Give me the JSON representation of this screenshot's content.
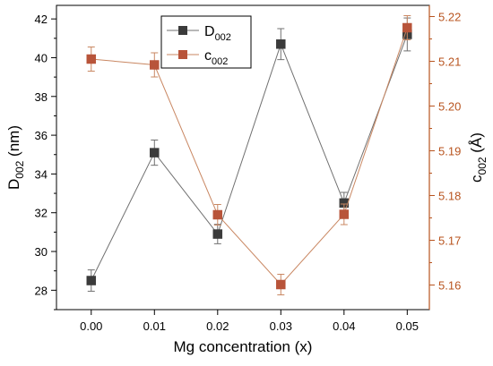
{
  "chart_data": {
    "type": "line",
    "xlabel": "Mg concentration (x)",
    "x": [
      0.0,
      0.01,
      0.02,
      0.03,
      0.04,
      0.05
    ],
    "x_tick_labels": [
      "0.00",
      "0.01",
      "0.02",
      "0.03",
      "0.04",
      "0.05"
    ],
    "xlim": [
      -0.0055,
      0.0535
    ],
    "y_left": {
      "label_base": "D",
      "label_sub": "002",
      "label_suffix": " (nm)",
      "lim": [
        27.0,
        42.7
      ],
      "ticks": [
        28,
        30,
        32,
        34,
        36,
        38,
        40,
        42
      ],
      "tick_labels": [
        "28",
        "30",
        "32",
        "34",
        "36",
        "38",
        "40",
        "42"
      ],
      "color": "#000000"
    },
    "y_right": {
      "label_base": "c",
      "label_sub": "002",
      "label_suffix": " (Å)",
      "lim": [
        5.1545,
        5.2225
      ],
      "ticks": [
        5.16,
        5.17,
        5.18,
        5.19,
        5.2,
        5.21,
        5.22
      ],
      "tick_labels": [
        "5.16",
        "5.17",
        "5.18",
        "5.19",
        "5.20",
        "5.21",
        "5.22"
      ],
      "color": "#b8541f"
    },
    "series": [
      {
        "name_base": "D",
        "name_sub": "002",
        "axis": "left",
        "marker_color": "#3b3b3b",
        "line_color": "#707070",
        "values": [
          28.5,
          35.1,
          30.9,
          40.7,
          32.5,
          41.2
        ],
        "errors": [
          0.55,
          0.65,
          0.5,
          0.8,
          0.55,
          0.85
        ]
      },
      {
        "name_base": "c",
        "name_sub": "002",
        "axis": "right",
        "marker_color": "#b8543a",
        "line_color": "#c98762",
        "values": [
          5.2105,
          5.2092,
          5.1757,
          5.1601,
          5.1758,
          5.2175
        ],
        "errors": [
          0.0027,
          0.0027,
          0.0023,
          0.0023,
          0.0023,
          0.0027
        ]
      }
    ],
    "legend_position": "top-center",
    "grid": false
  }
}
